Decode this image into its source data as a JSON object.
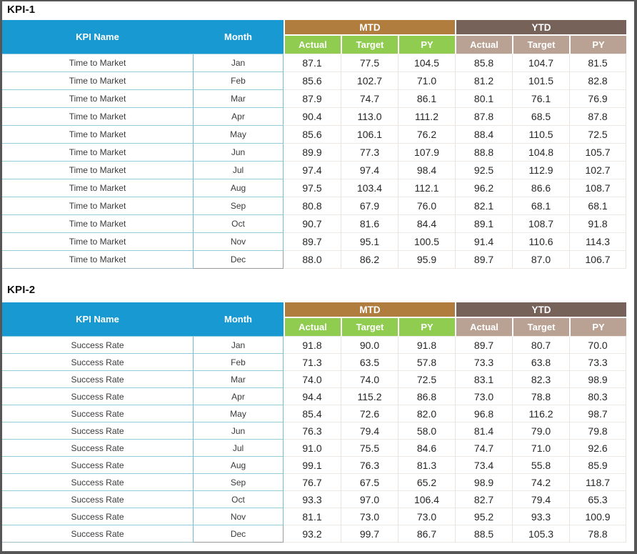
{
  "colors": {
    "frame_border": "#565656",
    "header_blue": "#1999D2",
    "mtd_brown": "#B07D3E",
    "ytd_brown": "#77625A",
    "mtd_sub_green": "#8FCC4F",
    "ytd_sub_taupe": "#B9A294",
    "row_border_teal": "#96CBDC",
    "row_border_light": "#EDE8E3"
  },
  "header": {
    "kpi_name": "KPI Name",
    "month": "Month",
    "mtd": "MTD",
    "ytd": "YTD",
    "actual": "Actual",
    "target": "Target",
    "py": "PY"
  },
  "tables": [
    {
      "title": "KPI-1",
      "kpi_name": "Time to Market",
      "rows": [
        {
          "month": "Jan",
          "mtd_actual": "87.1",
          "mtd_target": "77.5",
          "mtd_py": "104.5",
          "ytd_actual": "85.8",
          "ytd_target": "104.7",
          "ytd_py": "81.5"
        },
        {
          "month": "Feb",
          "mtd_actual": "85.6",
          "mtd_target": "102.7",
          "mtd_py": "71.0",
          "ytd_actual": "81.2",
          "ytd_target": "101.5",
          "ytd_py": "82.8"
        },
        {
          "month": "Mar",
          "mtd_actual": "87.9",
          "mtd_target": "74.7",
          "mtd_py": "86.1",
          "ytd_actual": "80.1",
          "ytd_target": "76.1",
          "ytd_py": "76.9"
        },
        {
          "month": "Apr",
          "mtd_actual": "90.4",
          "mtd_target": "113.0",
          "mtd_py": "111.2",
          "ytd_actual": "87.8",
          "ytd_target": "68.5",
          "ytd_py": "87.8"
        },
        {
          "month": "May",
          "mtd_actual": "85.6",
          "mtd_target": "106.1",
          "mtd_py": "76.2",
          "ytd_actual": "88.4",
          "ytd_target": "110.5",
          "ytd_py": "72.5"
        },
        {
          "month": "Jun",
          "mtd_actual": "89.9",
          "mtd_target": "77.3",
          "mtd_py": "107.9",
          "ytd_actual": "88.8",
          "ytd_target": "104.8",
          "ytd_py": "105.7"
        },
        {
          "month": "Jul",
          "mtd_actual": "97.4",
          "mtd_target": "97.4",
          "mtd_py": "98.4",
          "ytd_actual": "92.5",
          "ytd_target": "112.9",
          "ytd_py": "102.7"
        },
        {
          "month": "Aug",
          "mtd_actual": "97.5",
          "mtd_target": "103.4",
          "mtd_py": "112.1",
          "ytd_actual": "96.2",
          "ytd_target": "86.6",
          "ytd_py": "108.7"
        },
        {
          "month": "Sep",
          "mtd_actual": "80.8",
          "mtd_target": "67.9",
          "mtd_py": "76.0",
          "ytd_actual": "82.1",
          "ytd_target": "68.1",
          "ytd_py": "68.1"
        },
        {
          "month": "Oct",
          "mtd_actual": "90.7",
          "mtd_target": "81.6",
          "mtd_py": "84.4",
          "ytd_actual": "89.1",
          "ytd_target": "108.7",
          "ytd_py": "91.8"
        },
        {
          "month": "Nov",
          "mtd_actual": "89.7",
          "mtd_target": "95.1",
          "mtd_py": "100.5",
          "ytd_actual": "91.4",
          "ytd_target": "110.6",
          "ytd_py": "114.3"
        },
        {
          "month": "Dec",
          "mtd_actual": "88.0",
          "mtd_target": "86.2",
          "mtd_py": "95.9",
          "ytd_actual": "89.7",
          "ytd_target": "87.0",
          "ytd_py": "106.7"
        }
      ]
    },
    {
      "title": "KPI-2",
      "kpi_name": "Success Rate",
      "rows": [
        {
          "month": "Jan",
          "mtd_actual": "91.8",
          "mtd_target": "90.0",
          "mtd_py": "91.8",
          "ytd_actual": "89.7",
          "ytd_target": "80.7",
          "ytd_py": "70.0"
        },
        {
          "month": "Feb",
          "mtd_actual": "71.3",
          "mtd_target": "63.5",
          "mtd_py": "57.8",
          "ytd_actual": "73.3",
          "ytd_target": "63.8",
          "ytd_py": "73.3"
        },
        {
          "month": "Mar",
          "mtd_actual": "74.0",
          "mtd_target": "74.0",
          "mtd_py": "72.5",
          "ytd_actual": "83.1",
          "ytd_target": "82.3",
          "ytd_py": "98.9"
        },
        {
          "month": "Apr",
          "mtd_actual": "94.4",
          "mtd_target": "115.2",
          "mtd_py": "86.8",
          "ytd_actual": "73.0",
          "ytd_target": "78.8",
          "ytd_py": "80.3"
        },
        {
          "month": "May",
          "mtd_actual": "85.4",
          "mtd_target": "72.6",
          "mtd_py": "82.0",
          "ytd_actual": "96.8",
          "ytd_target": "116.2",
          "ytd_py": "98.7"
        },
        {
          "month": "Jun",
          "mtd_actual": "76.3",
          "mtd_target": "79.4",
          "mtd_py": "58.0",
          "ytd_actual": "81.4",
          "ytd_target": "79.0",
          "ytd_py": "79.8"
        },
        {
          "month": "Jul",
          "mtd_actual": "91.0",
          "mtd_target": "75.5",
          "mtd_py": "84.6",
          "ytd_actual": "74.7",
          "ytd_target": "71.0",
          "ytd_py": "92.6"
        },
        {
          "month": "Aug",
          "mtd_actual": "99.1",
          "mtd_target": "76.3",
          "mtd_py": "81.3",
          "ytd_actual": "73.4",
          "ytd_target": "55.8",
          "ytd_py": "85.9"
        },
        {
          "month": "Sep",
          "mtd_actual": "76.7",
          "mtd_target": "67.5",
          "mtd_py": "65.2",
          "ytd_actual": "98.9",
          "ytd_target": "74.2",
          "ytd_py": "118.7"
        },
        {
          "month": "Oct",
          "mtd_actual": "93.3",
          "mtd_target": "97.0",
          "mtd_py": "106.4",
          "ytd_actual": "82.7",
          "ytd_target": "79.4",
          "ytd_py": "65.3"
        },
        {
          "month": "Nov",
          "mtd_actual": "81.1",
          "mtd_target": "73.0",
          "mtd_py": "73.0",
          "ytd_actual": "95.2",
          "ytd_target": "93.3",
          "ytd_py": "100.9"
        },
        {
          "month": "Dec",
          "mtd_actual": "93.2",
          "mtd_target": "99.7",
          "mtd_py": "86.7",
          "ytd_actual": "88.5",
          "ytd_target": "105.3",
          "ytd_py": "78.8"
        }
      ]
    }
  ]
}
